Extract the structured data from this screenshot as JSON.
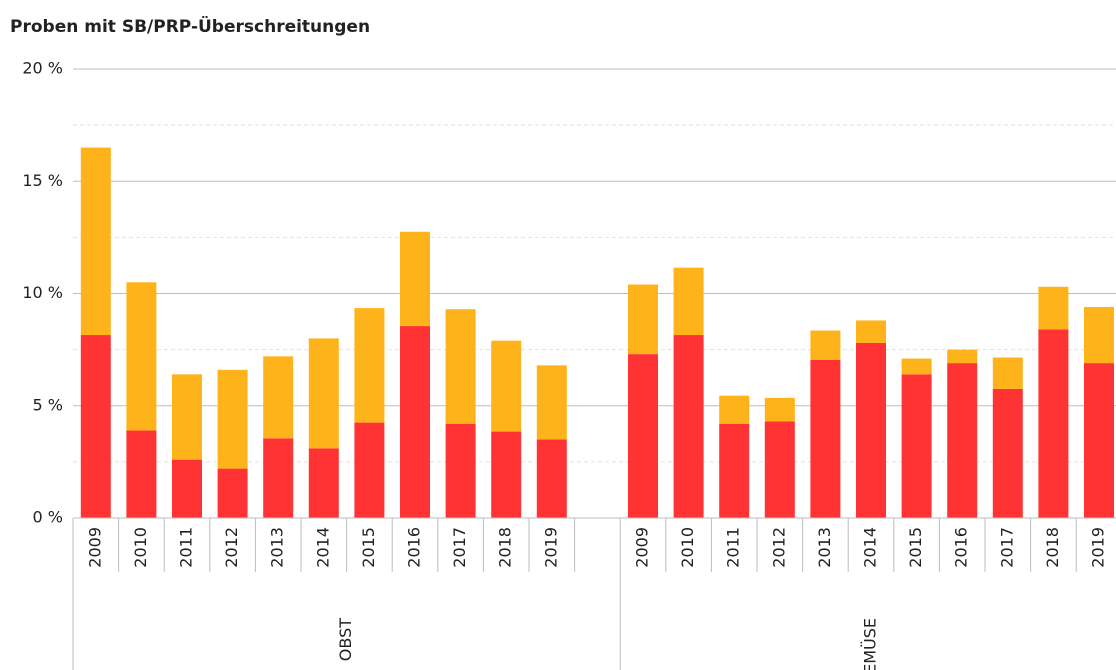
{
  "chart_data": {
    "type": "stacked_bar",
    "title": "Proben mit SB/PRP-Überschreitungen",
    "categories": [
      "2009",
      "2010",
      "2011",
      "2012",
      "2013",
      "2014",
      "2015",
      "2016",
      "2017",
      "2018",
      "2019",
      null,
      "2009",
      "2010",
      "2011",
      "2012",
      "2013",
      "2014",
      "2015",
      "2016",
      "2017",
      "2018",
      "2019"
    ],
    "groups": [
      "OBST",
      "GEMÜSE"
    ],
    "series": [
      {
        "color": "#ff3333",
        "values": [
          8.15,
          3.9,
          2.6,
          2.2,
          3.55,
          3.1,
          4.25,
          8.55,
          4.2,
          3.85,
          3.5,
          null,
          7.3,
          8.15,
          4.2,
          4.3,
          7.05,
          7.8,
          6.4,
          6.9,
          5.75,
          8.4,
          6.9
        ]
      },
      {
        "color": "#ffb31a",
        "values": [
          8.35,
          6.6,
          3.8,
          4.4,
          3.65,
          4.9,
          5.1,
          4.2,
          5.1,
          4.05,
          3.3,
          null,
          3.1,
          3.0,
          1.25,
          1.05,
          1.3,
          1.0,
          0.7,
          0.6,
          1.4,
          1.9,
          2.5
        ]
      }
    ],
    "ylim": [
      0,
      20
    ],
    "yticks": [
      {
        "value": 0,
        "label": "0 %"
      },
      {
        "value": 5,
        "label": "5 %"
      },
      {
        "value": 10,
        "label": "10 %"
      },
      {
        "value": 15,
        "label": "15 %"
      },
      {
        "value": 20,
        "label": "20 %"
      }
    ],
    "minor_yticks": [
      2.5,
      7.5,
      12.5,
      17.5
    ],
    "grid": true
  }
}
